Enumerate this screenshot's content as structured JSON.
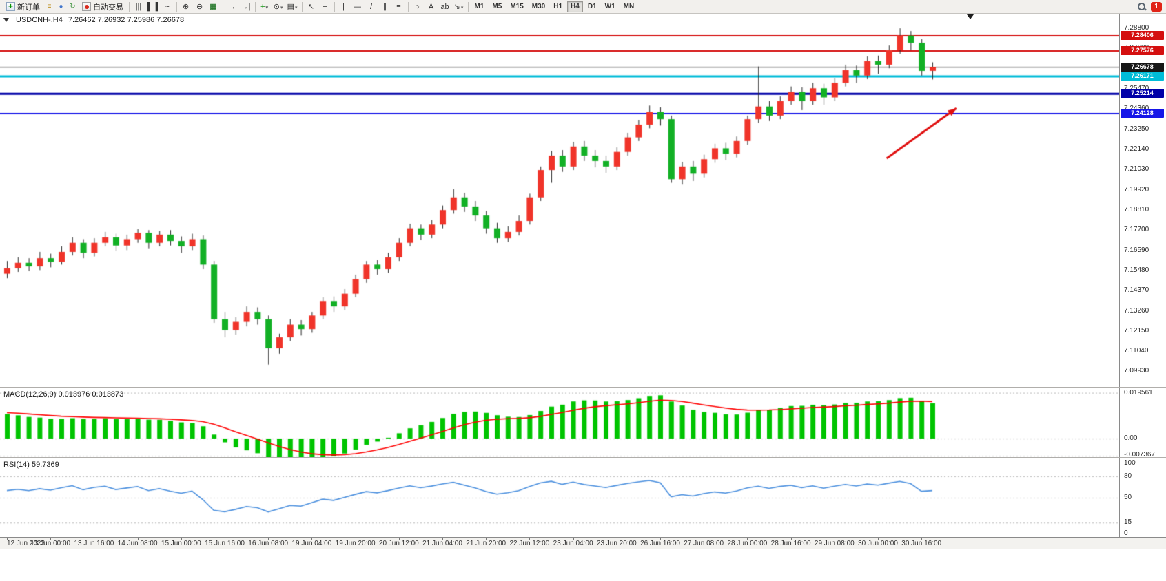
{
  "toolbar": {
    "new_order_label": "新订单",
    "autotrading_label": "自动交易",
    "badge_count": "1",
    "left_icons": [
      {
        "name": "document-icon",
        "glyph": "≡",
        "color": "#b8860b"
      },
      {
        "name": "user-icon",
        "glyph": "●",
        "color": "#4477cc"
      },
      {
        "name": "refresh-icon",
        "glyph": "↻",
        "color": "#2e8b2e"
      }
    ],
    "tools": [
      {
        "name": "bar-chart-icon",
        "glyph": "|||"
      },
      {
        "name": "candlestick-chart-icon",
        "glyph": "▌▐"
      },
      {
        "name": "line-chart-icon",
        "glyph": "~"
      },
      {
        "sep": true
      },
      {
        "name": "zoom-in-icon",
        "glyph": "⊕"
      },
      {
        "name": "zoom-out-icon",
        "glyph": "⊖"
      },
      {
        "name": "tile-windows-icon",
        "glyph": "▦",
        "color": "#2e7d32"
      },
      {
        "sep": true
      },
      {
        "name": "auto-scroll-icon",
        "glyph": "→"
      },
      {
        "name": "chart-shift-icon",
        "glyph": "→|"
      },
      {
        "sep": true
      },
      {
        "name": "add-indicator-icon",
        "glyph": "+",
        "color": "#149414",
        "dropdown": true
      },
      {
        "name": "period-clock-icon",
        "glyph": "⊙",
        "dropdown": true
      },
      {
        "name": "template-icon",
        "glyph": "▤",
        "dropdown": true
      },
      {
        "sep": true
      },
      {
        "name": "cursor-icon",
        "glyph": "↖"
      },
      {
        "name": "crosshair-icon",
        "glyph": "+"
      },
      {
        "sep": true
      },
      {
        "name": "vertical-line-icon",
        "glyph": "|"
      },
      {
        "name": "horizontal-line-icon",
        "glyph": "—"
      },
      {
        "name": "trendline-icon",
        "glyph": "/"
      },
      {
        "name": "equidistant-channel-icon",
        "glyph": "∥"
      },
      {
        "name": "fibonacci-retracement-icon",
        "glyph": "≡"
      },
      {
        "sep": true
      },
      {
        "name": "shapes-icon",
        "glyph": "○"
      },
      {
        "name": "text-icon",
        "glyph": "A"
      },
      {
        "name": "text-label-icon",
        "glyph": "ab"
      },
      {
        "name": "arrows-icon",
        "glyph": "↘",
        "dropdown": true
      },
      {
        "sep": true
      }
    ],
    "timeframes": [
      "M1",
      "M5",
      "M15",
      "M30",
      "H1",
      "H4",
      "D1",
      "W1",
      "MN"
    ],
    "active_timeframe": "H4"
  },
  "chart": {
    "symbol_label": "USDCNH-,H4",
    "ohlc_label": "7.26462 7.26932 7.25986 7.26678",
    "axis_labels": [
      "7.28800",
      "7.27690",
      "7.26580",
      "7.25470",
      "7.24360",
      "7.23250",
      "7.22140",
      "7.21030",
      "7.19920",
      "7.18810",
      "7.17700",
      "7.16590",
      "7.15480",
      "7.14370",
      "7.13260",
      "7.12150",
      "7.11040",
      "7.09930"
    ],
    "price_lines": [
      {
        "price": 7.28406,
        "label": "7.28406",
        "color": "#d40f0f",
        "width": 2,
        "current": false
      },
      {
        "price": 7.27576,
        "label": "7.27576",
        "color": "#d40f0f",
        "width": 2,
        "current": false
      },
      {
        "price": 7.26678,
        "label": "7.26678",
        "color": "#161616",
        "width": 1,
        "current": true
      },
      {
        "price": 7.26171,
        "label": "7.26171",
        "color": "#00bcd8",
        "width": 3,
        "current": false
      },
      {
        "price": 7.25214,
        "label": "7.25214",
        "color": "#0000a8",
        "width": 3,
        "current": false
      },
      {
        "price": 7.24128,
        "label": "7.24128",
        "color": "#1616e8",
        "width": 2,
        "current": false
      }
    ],
    "annotation": {
      "type": "arrow",
      "color": "#e01010",
      "from_bar": 80.8,
      "from_price": 7.2165,
      "to_bar": 87.2,
      "to_price": 7.244
    },
    "time_labels": [
      "12 Jun 2023",
      "13 Jun 00:00",
      "13 Jun 16:00",
      "14 Jun 08:00",
      "15 Jun 00:00",
      "15 Jun 16:00",
      "16 Jun 08:00",
      "19 Jun 04:00",
      "19 Jun 20:00",
      "20 Jun 12:00",
      "21 Jun 04:00",
      "21 Jun 20:00",
      "22 Jun 12:00",
      "23 Jun 04:00",
      "23 Jun 20:00",
      "26 Jun 16:00",
      "27 Jun 08:00",
      "28 Jun 00:00",
      "28 Jun 16:00",
      "29 Jun 08:00",
      "30 Jun 00:00",
      "30 Jun 16:00"
    ]
  },
  "macd": {
    "label": "MACD(12,26,9) 0.013976 0.013873",
    "scale_labels": [
      "0.019561",
      "0.00",
      "-0.007367"
    ]
  },
  "rsi": {
    "label": "RSI(14) 59.7369",
    "scale_labels": [
      "100",
      "80",
      "50",
      "15",
      "0"
    ]
  },
  "chart_data": {
    "type": "candlestick",
    "symbol": "USDCNH-",
    "timeframe": "H4",
    "ylim": [
      7.09,
      7.296
    ],
    "bars_per_label": 4,
    "up_color": "#f0342a",
    "down_color": "#12b025",
    "wick_color": "#2a2a2a",
    "macd_color": "#00c400",
    "signal_color": "#ff0000",
    "rsi_color": "#4a8fde",
    "macd_ylim": [
      -0.0085,
      0.0215
    ],
    "rsi_levels": [
      80,
      50,
      15
    ],
    "indicators": {
      "macd": {
        "params": [
          12,
          26,
          9
        ],
        "last_macd": 0.013976,
        "last_signal": 0.013873
      },
      "rsi": {
        "period": 14,
        "last": 59.7369
      }
    },
    "candles": [
      [
        7.153,
        7.16,
        7.1505,
        7.156
      ],
      [
        7.156,
        7.162,
        7.154,
        7.159
      ],
      [
        7.159,
        7.1615,
        7.1545,
        7.157
      ],
      [
        7.157,
        7.165,
        7.155,
        7.1615
      ],
      [
        7.1615,
        7.164,
        7.1565,
        7.1595
      ],
      [
        7.1595,
        7.168,
        7.158,
        7.165
      ],
      [
        7.165,
        7.173,
        7.163,
        7.17
      ],
      [
        7.17,
        7.172,
        7.1615,
        7.1645
      ],
      [
        7.1645,
        7.1725,
        7.1625,
        7.17
      ],
      [
        7.17,
        7.176,
        7.168,
        7.173
      ],
      [
        7.173,
        7.175,
        7.1655,
        7.1685
      ],
      [
        7.1685,
        7.1745,
        7.166,
        7.172
      ],
      [
        7.172,
        7.1775,
        7.17,
        7.1755
      ],
      [
        7.1755,
        7.177,
        7.167,
        7.17
      ],
      [
        7.17,
        7.1765,
        7.168,
        7.1745
      ],
      [
        7.1745,
        7.177,
        7.1685,
        7.171
      ],
      [
        7.171,
        7.1735,
        7.1645,
        7.168
      ],
      [
        7.168,
        7.175,
        7.166,
        7.172
      ],
      [
        7.172,
        7.174,
        7.1555,
        7.158
      ],
      [
        7.158,
        7.16,
        7.126,
        7.128
      ],
      [
        7.128,
        7.132,
        7.118,
        7.122
      ],
      [
        7.122,
        7.129,
        7.1195,
        7.1265
      ],
      [
        7.1265,
        7.135,
        7.124,
        7.132
      ],
      [
        7.132,
        7.1345,
        7.125,
        7.128
      ],
      [
        7.128,
        7.13,
        7.103,
        7.112
      ],
      [
        7.112,
        7.12,
        7.109,
        7.118
      ],
      [
        7.118,
        7.128,
        7.116,
        7.125
      ],
      [
        7.125,
        7.1275,
        7.119,
        7.1225
      ],
      [
        7.1225,
        7.132,
        7.1205,
        7.13
      ],
      [
        7.13,
        7.14,
        7.128,
        7.138
      ],
      [
        7.138,
        7.1405,
        7.132,
        7.135
      ],
      [
        7.135,
        7.1445,
        7.133,
        7.142
      ],
      [
        7.142,
        7.1525,
        7.14,
        7.15
      ],
      [
        7.15,
        7.16,
        7.148,
        7.158
      ],
      [
        7.158,
        7.1605,
        7.1525,
        7.1555
      ],
      [
        7.1555,
        7.1645,
        7.1535,
        7.162
      ],
      [
        7.162,
        7.1725,
        7.16,
        7.17
      ],
      [
        7.17,
        7.1805,
        7.168,
        7.178
      ],
      [
        7.178,
        7.18,
        7.1715,
        7.1745
      ],
      [
        7.1745,
        7.1825,
        7.1725,
        7.18
      ],
      [
        7.18,
        7.1905,
        7.178,
        7.188
      ],
      [
        7.188,
        7.1995,
        7.186,
        7.195
      ],
      [
        7.195,
        7.1975,
        7.187,
        7.19
      ],
      [
        7.19,
        7.193,
        7.182,
        7.185
      ],
      [
        7.185,
        7.1875,
        7.175,
        7.178
      ],
      [
        7.178,
        7.181,
        7.17,
        7.1725
      ],
      [
        7.1725,
        7.179,
        7.1705,
        7.176
      ],
      [
        7.176,
        7.185,
        7.174,
        7.182
      ],
      [
        7.182,
        7.197,
        7.18,
        7.195
      ],
      [
        7.195,
        7.212,
        7.193,
        7.21
      ],
      [
        7.21,
        7.2205,
        7.203,
        7.218
      ],
      [
        7.218,
        7.221,
        7.209,
        7.212
      ],
      [
        7.212,
        7.2255,
        7.21,
        7.223
      ],
      [
        7.223,
        7.226,
        7.215,
        7.218
      ],
      [
        7.218,
        7.221,
        7.2115,
        7.215
      ],
      [
        7.215,
        7.218,
        7.2085,
        7.212
      ],
      [
        7.212,
        7.2225,
        7.21,
        7.22
      ],
      [
        7.22,
        7.2305,
        7.218,
        7.228
      ],
      [
        7.228,
        7.2375,
        7.226,
        7.235
      ],
      [
        7.235,
        7.2455,
        7.233,
        7.242
      ],
      [
        7.242,
        7.2445,
        7.2345,
        7.238
      ],
      [
        7.238,
        7.24,
        7.203,
        7.205
      ],
      [
        7.205,
        7.2145,
        7.202,
        7.212
      ],
      [
        7.212,
        7.215,
        7.204,
        7.208
      ],
      [
        7.208,
        7.2185,
        7.206,
        7.216
      ],
      [
        7.216,
        7.2245,
        7.214,
        7.222
      ],
      [
        7.222,
        7.225,
        7.2155,
        7.219
      ],
      [
        7.219,
        7.2285,
        7.217,
        7.226
      ],
      [
        7.226,
        7.24,
        7.224,
        7.238
      ],
      [
        7.238,
        7.267,
        7.236,
        7.245
      ],
      [
        7.245,
        7.248,
        7.237,
        7.24
      ],
      [
        7.24,
        7.2505,
        7.238,
        7.248
      ],
      [
        7.248,
        7.256,
        7.246,
        7.253
      ],
      [
        7.253,
        7.2555,
        7.243,
        7.248
      ],
      [
        7.248,
        7.258,
        7.246,
        7.255
      ],
      [
        7.255,
        7.2575,
        7.246,
        7.25
      ],
      [
        7.25,
        7.2605,
        7.248,
        7.258
      ],
      [
        7.258,
        7.268,
        7.256,
        7.265
      ],
      [
        7.265,
        7.2675,
        7.258,
        7.262
      ],
      [
        7.262,
        7.2725,
        7.26,
        7.27
      ],
      [
        7.27,
        7.273,
        7.263,
        7.268
      ],
      [
        7.268,
        7.2785,
        7.266,
        7.276
      ],
      [
        7.276,
        7.288,
        7.274,
        7.284
      ],
      [
        7.284,
        7.2865,
        7.276,
        7.28
      ],
      [
        7.28,
        7.282,
        7.262,
        7.2646
      ],
      [
        7.26462,
        7.26932,
        7.25986,
        7.26678
      ]
    ]
  }
}
